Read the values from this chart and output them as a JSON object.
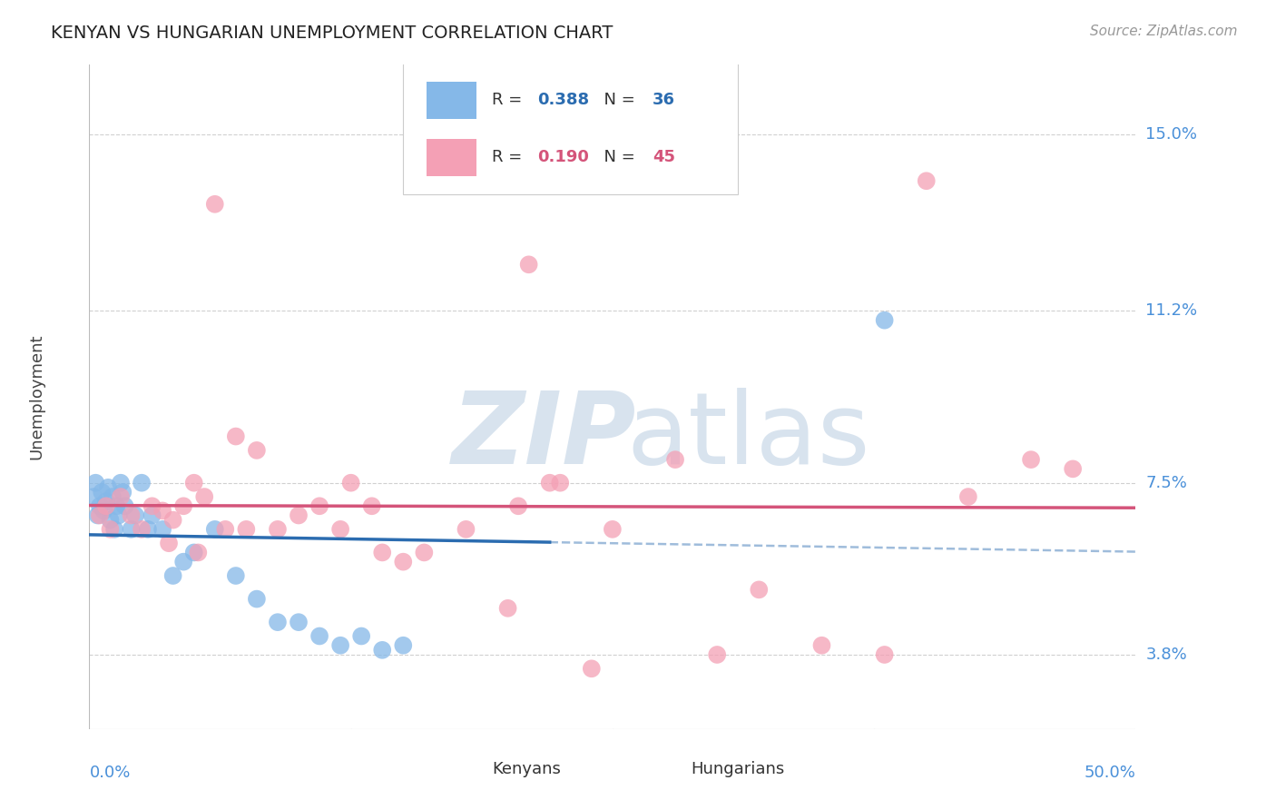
{
  "title": "KENYAN VS HUNGARIAN UNEMPLOYMENT CORRELATION CHART",
  "source": "Source: ZipAtlas.com",
  "ylabel": "Unemployment",
  "y_ticks": [
    3.8,
    7.5,
    11.2,
    15.0
  ],
  "y_tick_labels": [
    "3.8%",
    "7.5%",
    "11.2%",
    "15.0%"
  ],
  "xmin": 0.0,
  "xmax": 50.0,
  "ymin": 2.2,
  "ymax": 16.5,
  "kenyan_R": "0.388",
  "kenyan_N": "36",
  "hungarian_R": "0.190",
  "hungarian_N": "45",
  "kenyan_color": "#85b8e8",
  "kenyan_line_color": "#2b6cb0",
  "hungarian_color": "#f4a0b5",
  "hungarian_line_color": "#d4547a",
  "label_color": "#4a90d9",
  "title_color": "#222222",
  "source_color": "#999999",
  "grid_color": "#d0d0d0",
  "background_color": "#ffffff",
  "watermark_color": "#c8d8e8",
  "kenyan_x": [
    0.2,
    0.3,
    0.4,
    0.5,
    0.6,
    0.7,
    0.8,
    0.9,
    1.0,
    1.1,
    1.2,
    1.3,
    1.4,
    1.5,
    1.6,
    1.7,
    2.0,
    2.2,
    2.5,
    3.0,
    3.5,
    4.5,
    5.0,
    6.0,
    7.0,
    8.0,
    9.0,
    10.0,
    11.0,
    12.0,
    13.0,
    14.0,
    15.0,
    4.0,
    2.8,
    38.0
  ],
  "kenyan_y": [
    7.2,
    7.5,
    6.8,
    7.0,
    7.3,
    6.9,
    7.1,
    7.4,
    6.7,
    7.2,
    6.5,
    7.0,
    6.8,
    7.5,
    7.3,
    7.0,
    6.5,
    6.8,
    7.5,
    6.8,
    6.5,
    5.8,
    6.0,
    6.5,
    5.5,
    5.0,
    4.5,
    4.5,
    4.2,
    4.0,
    4.2,
    3.9,
    4.0,
    5.5,
    6.5,
    11.0
  ],
  "hungarian_x": [
    0.5,
    0.8,
    1.0,
    1.5,
    2.0,
    2.5,
    3.0,
    3.5,
    4.0,
    4.5,
    5.0,
    5.5,
    6.0,
    6.5,
    7.0,
    8.0,
    9.0,
    10.0,
    11.0,
    12.0,
    13.5,
    14.0,
    15.0,
    16.0,
    18.0,
    20.0,
    21.0,
    22.0,
    24.0,
    25.0,
    28.0,
    30.0,
    32.0,
    35.0,
    38.0,
    40.0,
    42.0,
    45.0,
    47.0,
    3.8,
    5.2,
    7.5,
    12.5,
    20.5,
    22.5
  ],
  "hungarian_y": [
    6.8,
    7.0,
    6.5,
    7.2,
    6.8,
    6.5,
    7.0,
    6.9,
    6.7,
    7.0,
    7.5,
    7.2,
    13.5,
    6.5,
    8.5,
    8.2,
    6.5,
    6.8,
    7.0,
    6.5,
    7.0,
    6.0,
    5.8,
    6.0,
    6.5,
    4.8,
    12.2,
    7.5,
    3.5,
    6.5,
    8.0,
    3.8,
    5.2,
    4.0,
    3.8,
    14.0,
    7.2,
    8.0,
    7.8,
    6.2,
    6.0,
    6.5,
    7.5,
    7.0,
    7.5
  ]
}
